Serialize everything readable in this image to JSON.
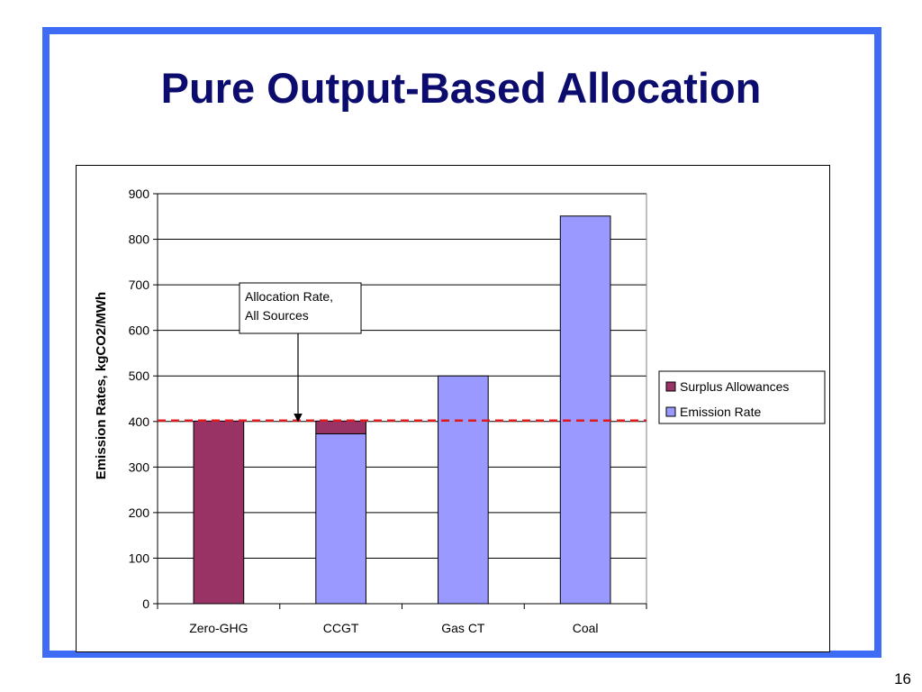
{
  "slide": {
    "title": "Pure Output-Based Allocation",
    "page_number": "16"
  },
  "colors": {
    "frame": "#3f6cf5",
    "title": "#0c0c6e",
    "surplus": "#993366",
    "emission": "#9999ff",
    "allocation_line": "#e0191e"
  },
  "chart_data": {
    "type": "bar",
    "stacked": true,
    "categories": [
      "Zero-GHG",
      "CCGT",
      "Gas CT",
      "Coal"
    ],
    "series": [
      {
        "name": "Emission Rate",
        "color": "#9999ff",
        "values": [
          0,
          373,
          500,
          851
        ]
      },
      {
        "name": "Surplus Allowances",
        "color": "#993366",
        "values": [
          401,
          28,
          0,
          0
        ]
      }
    ],
    "legend_order": [
      "Surplus Allowances",
      "Emission Rate"
    ],
    "ylabel": "Emission Rates, kgCO2/MWh",
    "xlabel": "",
    "ylim": [
      0,
      900
    ],
    "yticks": [
      0,
      100,
      200,
      300,
      400,
      500,
      600,
      700,
      800,
      900
    ],
    "grid": "horizontal",
    "legend_position": "right",
    "reference_line": {
      "value": 402,
      "style": "dashed"
    },
    "annotation": {
      "lines": [
        "Allocation Rate,",
        "All Sources"
      ],
      "points_to_value": 402
    }
  }
}
